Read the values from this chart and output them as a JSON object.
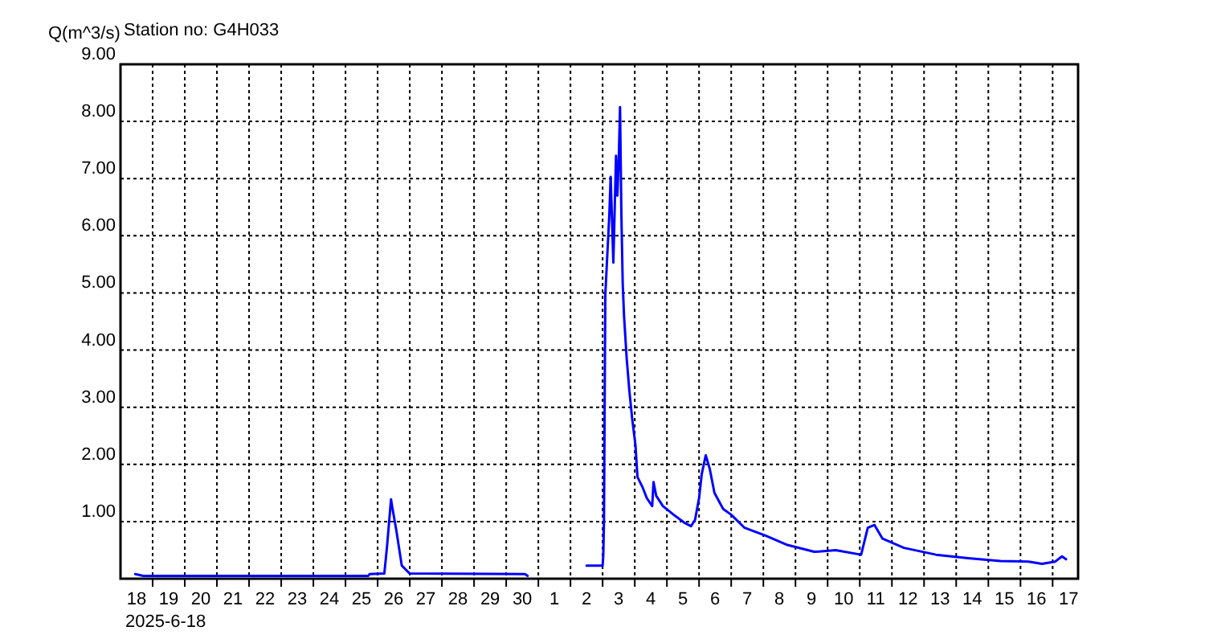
{
  "chart_data": {
    "type": "line",
    "title": "Station no: G4H033",
    "ylabel": "Q(m^3/s)",
    "annotations": [
      "2025-6-18"
    ],
    "xlim": [
      "2025-06-18T00:00",
      "2025-07-17T19:00"
    ],
    "xticks": [
      {
        "value": "2025-06-19T00:00",
        "label": null
      },
      {
        "value": "2025-06-20T00:00",
        "label": null
      },
      {
        "value": "2025-06-21T00:00",
        "label": null
      },
      {
        "value": "2025-06-22T00:00",
        "label": null
      },
      {
        "value": "2025-06-23T00:00",
        "label": null
      },
      {
        "value": "2025-06-24T00:00",
        "label": null
      },
      {
        "value": "2025-06-25T00:00",
        "label": null
      },
      {
        "value": "2025-06-26T00:00",
        "label": null
      },
      {
        "value": "2025-06-27T00:00",
        "label": null
      },
      {
        "value": "2025-06-28T00:00",
        "label": null
      },
      {
        "value": "2025-06-29T00:00",
        "label": null
      },
      {
        "value": "2025-06-30T00:00",
        "label": null
      },
      {
        "value": "2025-07-01T00:00",
        "label": null
      },
      {
        "value": "2025-07-02T00:00",
        "label": null
      },
      {
        "value": "2025-07-03T00:00",
        "label": null
      },
      {
        "value": "2025-07-04T00:00",
        "label": null
      },
      {
        "value": "2025-07-05T00:00",
        "label": null
      },
      {
        "value": "2025-07-06T00:00",
        "label": null
      },
      {
        "value": "2025-07-07T00:00",
        "label": null
      },
      {
        "value": "2025-07-08T00:00",
        "label": null
      },
      {
        "value": "2025-07-09T00:00",
        "label": null
      },
      {
        "value": "2025-07-10T00:00",
        "label": null
      },
      {
        "value": "2025-07-11T00:00",
        "label": null
      },
      {
        "value": "2025-07-12T00:00",
        "label": null
      },
      {
        "value": "2025-07-13T00:00",
        "label": null
      },
      {
        "value": "2025-07-14T00:00",
        "label": null
      },
      {
        "value": "2025-07-15T00:00",
        "label": null
      },
      {
        "value": "2025-07-16T00:00",
        "label": null
      },
      {
        "value": "2025-07-17T00:00",
        "label": null
      },
      {
        "value": "2025-06-18T12:00",
        "label": "18"
      },
      {
        "value": "2025-06-19T12:00",
        "label": "19"
      },
      {
        "value": "2025-06-20T12:00",
        "label": "20"
      },
      {
        "value": "2025-06-21T12:00",
        "label": "21"
      },
      {
        "value": "2025-06-22T12:00",
        "label": "22"
      },
      {
        "value": "2025-06-23T12:00",
        "label": "23"
      },
      {
        "value": "2025-06-24T12:00",
        "label": "24"
      },
      {
        "value": "2025-06-25T12:00",
        "label": "25"
      },
      {
        "value": "2025-06-26T12:00",
        "label": "26"
      },
      {
        "value": "2025-06-27T12:00",
        "label": "27"
      },
      {
        "value": "2025-06-28T12:00",
        "label": "28"
      },
      {
        "value": "2025-06-29T12:00",
        "label": "29"
      },
      {
        "value": "2025-06-30T12:00",
        "label": "30"
      },
      {
        "value": "2025-07-01T12:00",
        "label": "1"
      },
      {
        "value": "2025-07-02T12:00",
        "label": "2"
      },
      {
        "value": "2025-07-03T12:00",
        "label": "3"
      },
      {
        "value": "2025-07-04T12:00",
        "label": "4"
      },
      {
        "value": "2025-07-05T12:00",
        "label": "5"
      },
      {
        "value": "2025-07-06T12:00",
        "label": "6"
      },
      {
        "value": "2025-07-07T12:00",
        "label": "7"
      },
      {
        "value": "2025-07-08T12:00",
        "label": "8"
      },
      {
        "value": "2025-07-09T12:00",
        "label": "9"
      },
      {
        "value": "2025-07-10T12:00",
        "label": "10"
      },
      {
        "value": "2025-07-11T12:00",
        "label": "11"
      },
      {
        "value": "2025-07-12T12:00",
        "label": "12"
      },
      {
        "value": "2025-07-13T12:00",
        "label": "13"
      },
      {
        "value": "2025-07-14T12:00",
        "label": "14"
      },
      {
        "value": "2025-07-15T12:00",
        "label": "15"
      },
      {
        "value": "2025-07-16T12:00",
        "label": "16"
      },
      {
        "value": "2025-07-17T12:00",
        "label": "17"
      }
    ],
    "ylim": [
      0,
      9
    ],
    "yticks": [
      {
        "value": 1,
        "label": "1.00"
      },
      {
        "value": 2,
        "label": "2.00"
      },
      {
        "value": 3,
        "label": "3.00"
      },
      {
        "value": 4,
        "label": "4.00"
      },
      {
        "value": 5,
        "label": "5.00"
      },
      {
        "value": 6,
        "label": "6.00"
      },
      {
        "value": 7,
        "label": "7.00"
      },
      {
        "value": 8,
        "label": "8.00"
      },
      {
        "value": 9,
        "label": "9.00"
      }
    ],
    "grid": true,
    "line_style": "dotted",
    "x": [
      "2025-06-18T11:00",
      "2025-06-18T17:00",
      "2025-06-25T17:00",
      "2025-06-25T18:00",
      "2025-06-26T05:00",
      "2025-06-26T07:00",
      "2025-06-26T10:00",
      "2025-06-26T11:00",
      "2025-06-26T14:00",
      "2025-06-26T18:00",
      "2025-06-27T00:00",
      "2025-06-30T14:00",
      "2025-06-30T16:00",
      "2025-07-01T12:00",
      "2025-07-02T12:00",
      "2025-07-03T00:00",
      "2025-07-03T00:30",
      "2025-07-03T01:00",
      "2025-07-03T02:00",
      "2025-07-03T05:00",
      "2025-07-03T06:00",
      "2025-07-03T07:00",
      "2025-07-03T08:00",
      "2025-07-03T10:00",
      "2025-07-03T11:00",
      "2025-07-03T12:00",
      "2025-07-03T13:00",
      "2025-07-03T14:00",
      "2025-07-03T15:00",
      "2025-07-03T16:00",
      "2025-07-03T18:00",
      "2025-07-03T20:00",
      "2025-07-03T22:00",
      "2025-07-04T00:30",
      "2025-07-04T02:00",
      "2025-07-04T06:00",
      "2025-07-04T09:00",
      "2025-07-04T13:00",
      "2025-07-04T14:00",
      "2025-07-04T16:00",
      "2025-07-04T21:00",
      "2025-07-05T05:00",
      "2025-07-05T13:00",
      "2025-07-05T18:00",
      "2025-07-05T21:00",
      "2025-07-06T00:00",
      "2025-07-06T02:00",
      "2025-07-06T05:00",
      "2025-07-06T08:00",
      "2025-07-06T11:30",
      "2025-07-06T18:00",
      "2025-07-07T00:00",
      "2025-07-07T10:00",
      "2025-07-08T02:00",
      "2025-07-08T18:00",
      "2025-07-09T14:00",
      "2025-07-10T06:00",
      "2025-07-11T01:00",
      "2025-07-11T06:00",
      "2025-07-11T11:00",
      "2025-07-11T17:00",
      "2025-07-12T09:00",
      "2025-07-13T09:00",
      "2025-07-14T09:00",
      "2025-07-15T09:00",
      "2025-07-16T06:00",
      "2025-07-16T16:00",
      "2025-07-17T02:00",
      "2025-07-17T07:00",
      "2025-07-17T10:00"
    ],
    "series": [
      {
        "color": "#0000ff",
        "line_style": "solid",
        "values": [
          0.08,
          0.05,
          0.05,
          0.08,
          0.09,
          0.56,
          1.39,
          1.24,
          0.84,
          0.23,
          0.09,
          0.08,
          0.05,
          null,
          0.23,
          0.23,
          0.42,
          1.01,
          4.97,
          6.37,
          7.03,
          6.28,
          5.53,
          7.4,
          6.7,
          7.31,
          8.25,
          6.37,
          5.16,
          4.59,
          3.84,
          3.28,
          2.81,
          2.34,
          1.78,
          1.59,
          1.41,
          1.27,
          1.69,
          1.45,
          1.27,
          1.12,
          0.98,
          0.92,
          1.03,
          1.41,
          1.83,
          2.16,
          1.92,
          1.5,
          1.22,
          1.12,
          0.89,
          0.75,
          0.59,
          0.47,
          0.5,
          0.42,
          0.89,
          0.94,
          0.7,
          0.54,
          0.42,
          0.36,
          0.31,
          0.3,
          0.26,
          0.3,
          0.39,
          0.34
        ]
      }
    ]
  }
}
